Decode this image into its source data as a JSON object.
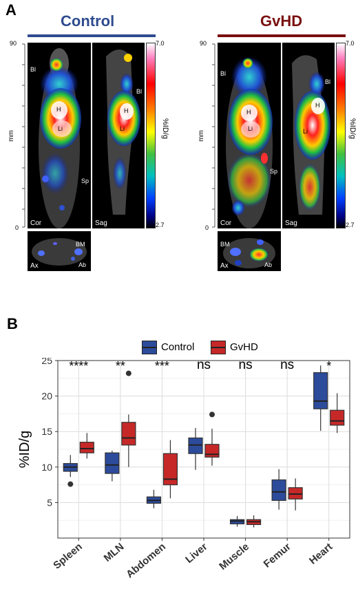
{
  "panel_a": {
    "letter": "A",
    "control_title": "Control",
    "gvhd_title": "GvHD",
    "control_color": "#2e4b8f",
    "gvhd_color": "#7a0f0f",
    "axis_label": "mm",
    "axis_top": "90",
    "axis_bottom": "0",
    "colorbar_max": "7.0",
    "colorbar_min": "2.7",
    "colorbar_title": "%ID/g",
    "views": {
      "cor": "Cor",
      "sag": "Sag",
      "ax": "Ax"
    },
    "annotations": {
      "bl": "Bl",
      "h": "H",
      "li": "Li",
      "sp": "Sp",
      "bm": "BM",
      "ab": "Ab"
    }
  },
  "panel_b": {
    "letter": "B"
  },
  "chart_data": {
    "type": "box",
    "categories": [
      "Spleen",
      "MLN",
      "Abdomen",
      "Liver",
      "Muscle",
      "Femur",
      "Heart"
    ],
    "ylabel": "%ID/g",
    "xlabel": "",
    "ylim": [
      0,
      25
    ],
    "yticks": [
      5,
      10,
      15,
      20,
      25
    ],
    "grid": true,
    "legend_position": "top",
    "significance": [
      "****",
      "**",
      "***",
      "ns",
      "ns",
      "ns",
      "*"
    ],
    "series": [
      {
        "name": "Control",
        "color": "#2c4b9b",
        "boxes": [
          {
            "whisker_low": 8.6,
            "q1": 9.4,
            "median": 10.0,
            "q3": 10.5,
            "whisker_high": 11.7,
            "outliers": [
              7.6
            ]
          },
          {
            "whisker_low": 8.0,
            "q1": 9.1,
            "median": 10.3,
            "q3": 12.0,
            "whisker_high": 12.3,
            "outliers": []
          },
          {
            "whisker_low": 4.2,
            "q1": 4.9,
            "median": 5.3,
            "q3": 5.8,
            "whisker_high": 6.8,
            "outliers": []
          },
          {
            "whisker_low": 9.6,
            "q1": 11.9,
            "median": 13.1,
            "q3": 14.1,
            "whisker_high": 15.5,
            "outliers": []
          },
          {
            "whisker_low": 1.6,
            "q1": 2.0,
            "median": 2.4,
            "q3": 2.6,
            "whisker_high": 3.1,
            "outliers": []
          },
          {
            "whisker_low": 4.0,
            "q1": 5.3,
            "median": 6.5,
            "q3": 8.2,
            "whisker_high": 9.7,
            "outliers": []
          },
          {
            "whisker_low": 15.1,
            "q1": 18.2,
            "median": 19.3,
            "q3": 23.3,
            "whisker_high": 24.3,
            "outliers": []
          }
        ]
      },
      {
        "name": "GvHD",
        "color": "#c62828",
        "boxes": [
          {
            "whisker_low": 11.2,
            "q1": 12.0,
            "median": 12.6,
            "q3": 13.5,
            "whisker_high": 14.8,
            "outliers": []
          },
          {
            "whisker_low": 10.0,
            "q1": 13.1,
            "median": 14.1,
            "q3": 16.3,
            "whisker_high": 17.4,
            "outliers": [
              23.2
            ]
          },
          {
            "whisker_low": 5.6,
            "q1": 7.5,
            "median": 8.3,
            "q3": 11.9,
            "whisker_high": 13.8,
            "outliers": []
          },
          {
            "whisker_low": 10.2,
            "q1": 11.4,
            "median": 11.8,
            "q3": 13.2,
            "whisker_high": 15.4,
            "outliers": [
              17.4
            ]
          },
          {
            "whisker_low": 1.5,
            "q1": 1.9,
            "median": 2.3,
            "q3": 2.6,
            "whisker_high": 3.2,
            "outliers": []
          },
          {
            "whisker_low": 3.9,
            "q1": 5.5,
            "median": 6.2,
            "q3": 7.1,
            "whisker_high": 8.4,
            "outliers": []
          },
          {
            "whisker_low": 14.8,
            "q1": 15.9,
            "median": 16.5,
            "q3": 18.0,
            "whisker_high": 20.4,
            "outliers": []
          }
        ]
      }
    ]
  }
}
